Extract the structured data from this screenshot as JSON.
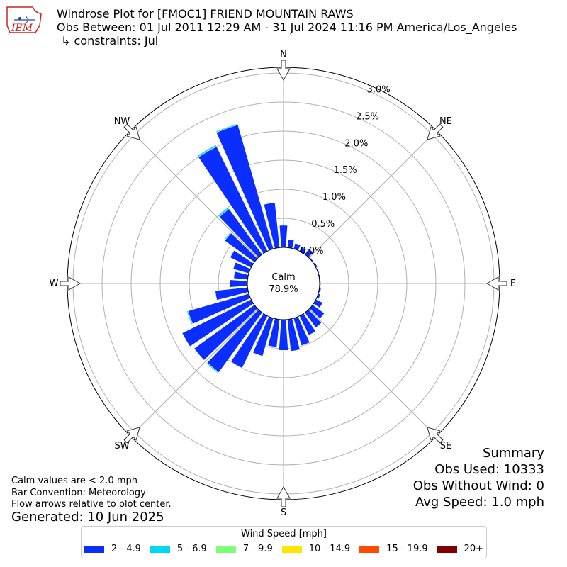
{
  "header": {
    "title": "Windrose Plot for [FMOC1] FRIEND MOUNTAIN RAWS",
    "obs_between": "Obs Between: 01 Jul 2011 12:29 AM - 31 Jul 2024 11:16 PM America/Los_Angeles",
    "constraints": "↳ constraints: Jul",
    "logo_text": "IEM"
  },
  "compass": {
    "n": "N",
    "ne": "NE",
    "e": "E",
    "se": "SE",
    "s": "S",
    "sw": "SW",
    "w": "W",
    "nw": "NW"
  },
  "center": {
    "label": "Calm",
    "value": "78.9%"
  },
  "summary": {
    "heading": "Summary",
    "obs_used": "Obs Used: 10333",
    "obs_without_wind": "Obs Without Wind: 0",
    "avg_speed": "Avg Speed: 1.0 mph"
  },
  "notes": {
    "calm": "Calm values are < 2.0 mph",
    "bar_convention": "Bar Convention: Meteorology",
    "flow": "Flow arrows relative to plot center."
  },
  "generated": "Generated: 10 Jun 2025",
  "legend": {
    "title": "Wind Speed [mph]",
    "items": [
      {
        "label": "2 - 4.9",
        "color": "#0a2eff"
      },
      {
        "label": "5 - 6.9",
        "color": "#00d7f0"
      },
      {
        "label": "7 - 9.9",
        "color": "#7dff7a"
      },
      {
        "label": "10 - 14.9",
        "color": "#ffe600"
      },
      {
        "label": "15 - 19.9",
        "color": "#ff4a00"
      },
      {
        "label": "20+",
        "color": "#800000"
      }
    ]
  },
  "chart_data": {
    "type": "windrose",
    "title": "Windrose Plot for [FMOC1] FRIEND MOUNTAIN RAWS",
    "radial_unit": "%",
    "radial_ticks": [
      "0.0%",
      "0.5%",
      "1.0%",
      "1.5%",
      "2.0%",
      "2.5%",
      "3.0%"
    ],
    "radial_max": 3.0,
    "calm_percent": 78.9,
    "directions_deg": [
      0,
      10,
      20,
      30,
      40,
      50,
      60,
      70,
      80,
      90,
      100,
      110,
      120,
      130,
      140,
      150,
      160,
      170,
      180,
      190,
      200,
      210,
      220,
      230,
      240,
      250,
      260,
      270,
      280,
      290,
      300,
      310,
      320,
      330,
      340,
      350
    ],
    "series": [
      {
        "name": "2 - 4.9",
        "color": "#0a2eff",
        "values": [
          0.38,
          0.14,
          0.1,
          0.08,
          0.12,
          0.02,
          0.03,
          0.02,
          0.02,
          0.02,
          0.03,
          0.04,
          0.13,
          0.25,
          0.32,
          0.37,
          0.49,
          0.55,
          0.53,
          0.48,
          0.68,
          1.0,
          1.27,
          1.28,
          1.32,
          1.09,
          0.56,
          0.3,
          0.24,
          0.28,
          0.4,
          0.63,
          0.97,
          2.0,
          2.22,
          0.78
        ]
      },
      {
        "name": "5 - 6.9",
        "color": "#00d7f0",
        "values": [
          0,
          0,
          0,
          0,
          0,
          0,
          0,
          0,
          0,
          0,
          0,
          0,
          0,
          0,
          0,
          0,
          0,
          0,
          0,
          0,
          0,
          0,
          0.02,
          0,
          0,
          0.02,
          0,
          0,
          0,
          0,
          0,
          0.02,
          0.03,
          0.03,
          0.02,
          0
        ]
      }
    ]
  }
}
